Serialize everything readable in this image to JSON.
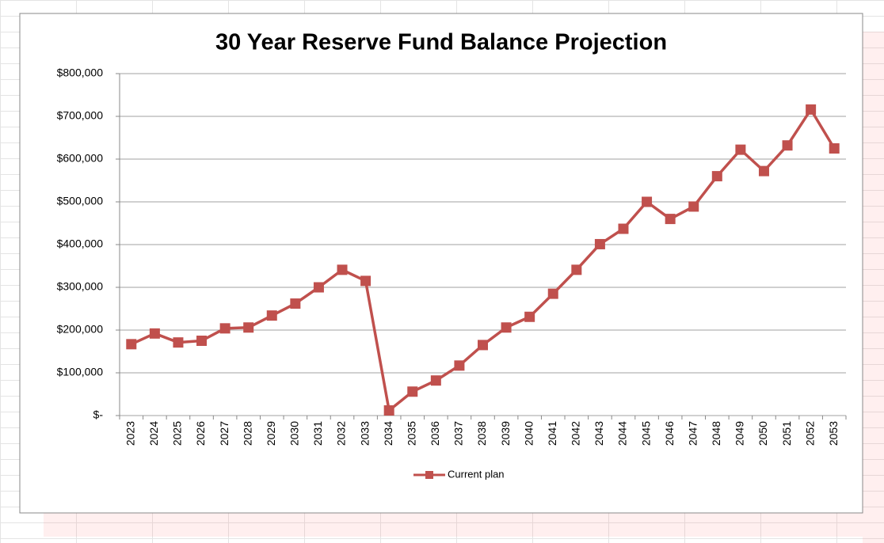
{
  "chart_data": {
    "type": "line",
    "title": "30 Year Reserve Fund Balance Projection",
    "categories": [
      "2023",
      "2024",
      "2025",
      "2026",
      "2027",
      "2028",
      "2029",
      "2030",
      "2031",
      "2032",
      "2033",
      "2034",
      "2035",
      "2036",
      "2037",
      "2038",
      "2039",
      "2040",
      "2041",
      "2042",
      "2043",
      "2044",
      "2045",
      "2046",
      "2047",
      "2048",
      "2049",
      "2050",
      "2051",
      "2052",
      "2053"
    ],
    "series": [
      {
        "name": "Current plan",
        "color": "#c0504d",
        "values": [
          167000,
          192000,
          171000,
          175000,
          204000,
          206000,
          234000,
          262000,
          300000,
          341000,
          315000,
          12000,
          56000,
          82000,
          117000,
          165000,
          206000,
          231000,
          285000,
          341000,
          401000,
          437000,
          500000,
          460000,
          489000,
          560000,
          622000,
          572000,
          632000,
          716000,
          625000
        ]
      }
    ],
    "ylim": [
      0,
      800000
    ],
    "yticks": [
      {
        "value": 0,
        "label": "$-"
      },
      {
        "value": 100000,
        "label": "$100,000"
      },
      {
        "value": 200000,
        "label": "$200,000"
      },
      {
        "value": 300000,
        "label": "$300,000"
      },
      {
        "value": 400000,
        "label": "$400,000"
      },
      {
        "value": 500000,
        "label": "$500,000"
      },
      {
        "value": 600000,
        "label": "$600,000"
      },
      {
        "value": 700000,
        "label": "$700,000"
      },
      {
        "value": 800000,
        "label": "$800,000"
      }
    ],
    "grid": true,
    "legend": "bottom"
  }
}
